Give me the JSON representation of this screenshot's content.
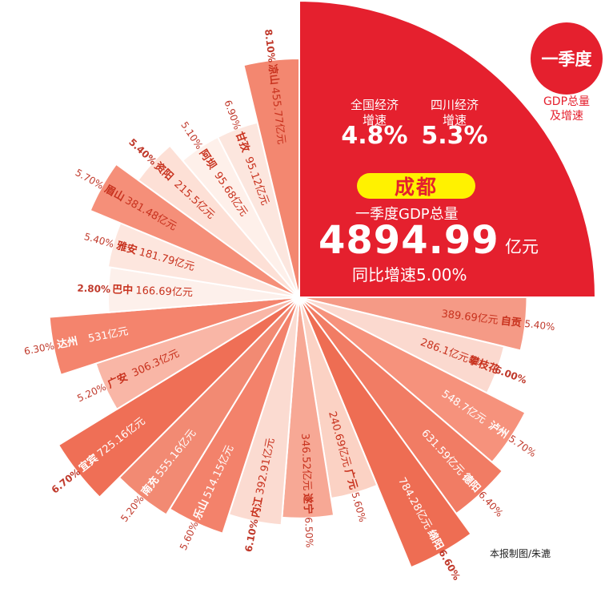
{
  "badge": {
    "text": "一季度",
    "sub_line1": "GDP总量",
    "sub_line2": "及增速"
  },
  "national": {
    "label_line1": "全国经济",
    "label_line2": "增速",
    "rate": "4.8%"
  },
  "sichuan": {
    "label_line1": "四川经济",
    "label_line2": "增速",
    "rate": "5.3%"
  },
  "chengdu": {
    "name": "成都",
    "subtitle": "一季度GDP总量",
    "total": "4894.99",
    "unit": "亿元",
    "growth": "同比增速5.00%"
  },
  "credit": "本报制图/朱漉",
  "colors": {
    "accent_red": "#e5202e",
    "highlight_yellow": "#fff200",
    "growth_text": "#c0392b"
  },
  "chart_data": {
    "type": "pie",
    "title": "",
    "unit": "亿元",
    "series": [
      {
        "city": "成都",
        "value": 4894.99,
        "value_label": "",
        "growth": "5.00%",
        "color": "#e5202e"
      },
      {
        "city": "自贡",
        "value": 389.69,
        "value_label": "389.69亿元",
        "growth": "5.40%",
        "color": "#f59a86"
      },
      {
        "city": "攀枝花",
        "value": 286.1,
        "value_label": "286.1亿元",
        "growth": "6.00%",
        "color": "#fbd9cf"
      },
      {
        "city": "泸州",
        "value": 548.7,
        "value_label": "548.7亿元",
        "growth": "5.70%",
        "color": "#f6927c"
      },
      {
        "city": "德阳",
        "value": 631.59,
        "value_label": "631.59亿元",
        "growth": "6.40%",
        "color": "#f17c64"
      },
      {
        "city": "绵阳",
        "value": 784.28,
        "value_label": "784.28亿元",
        "growth": "6.60%",
        "color": "#ee6d53"
      },
      {
        "city": "广元",
        "value": 240.69,
        "value_label": "240.69亿元",
        "growth": "5.60%",
        "color": "#fbd2c4"
      },
      {
        "city": "遂宁",
        "value": 346.52,
        "value_label": "346.52亿元",
        "growth": "6.50%",
        "color": "#f7a895"
      },
      {
        "city": "内江",
        "value": 392.91,
        "value_label": "392.91亿元",
        "growth": "6.10%",
        "color": "#fbdbd1"
      },
      {
        "city": "乐山",
        "value": 514.15,
        "value_label": "514.15亿元",
        "growth": "5.60%",
        "color": "#f3826b"
      },
      {
        "city": "南充",
        "value": 555.16,
        "value_label": "555.16亿元",
        "growth": "5.20%",
        "color": "#f28a73"
      },
      {
        "city": "宜宾",
        "value": 725.16,
        "value_label": "725.16亿元",
        "growth": "6.70%",
        "color": "#ef6f56"
      },
      {
        "city": "广安",
        "value": 306.3,
        "value_label": "306.3亿元",
        "growth": "5.20%",
        "color": "#f9b6a6"
      },
      {
        "city": "达州",
        "value": 531,
        "value_label": "531亿元",
        "growth": "6.30%",
        "color": "#f4846d"
      },
      {
        "city": "巴中",
        "value": 166.69,
        "value_label": "166.69亿元",
        "growth": "2.80%",
        "color": "#fdf0eb"
      },
      {
        "city": "雅安",
        "value": 181.79,
        "value_label": "181.79亿元",
        "growth": "5.40%",
        "color": "#fde6de"
      },
      {
        "city": "眉山",
        "value": 381.48,
        "value_label": "381.48亿元",
        "growth": "5.70%",
        "color": "#f58f79"
      },
      {
        "city": "资阳",
        "value": 215.5,
        "value_label": "215.5亿元",
        "growth": "5.40%",
        "color": "#fde0d6"
      },
      {
        "city": "阿坝",
        "value": 95.68,
        "value_label": "95.68亿元",
        "growth": "5.10%",
        "color": "#fef0ea"
      },
      {
        "city": "甘孜",
        "value": 95.12,
        "value_label": "95.12亿元",
        "growth": "6.90%",
        "color": "#fce6de"
      },
      {
        "city": "凉山",
        "value": 455.77,
        "value_label": "455.77亿元",
        "growth": "8.10%",
        "color": "#f38770"
      }
    ]
  }
}
